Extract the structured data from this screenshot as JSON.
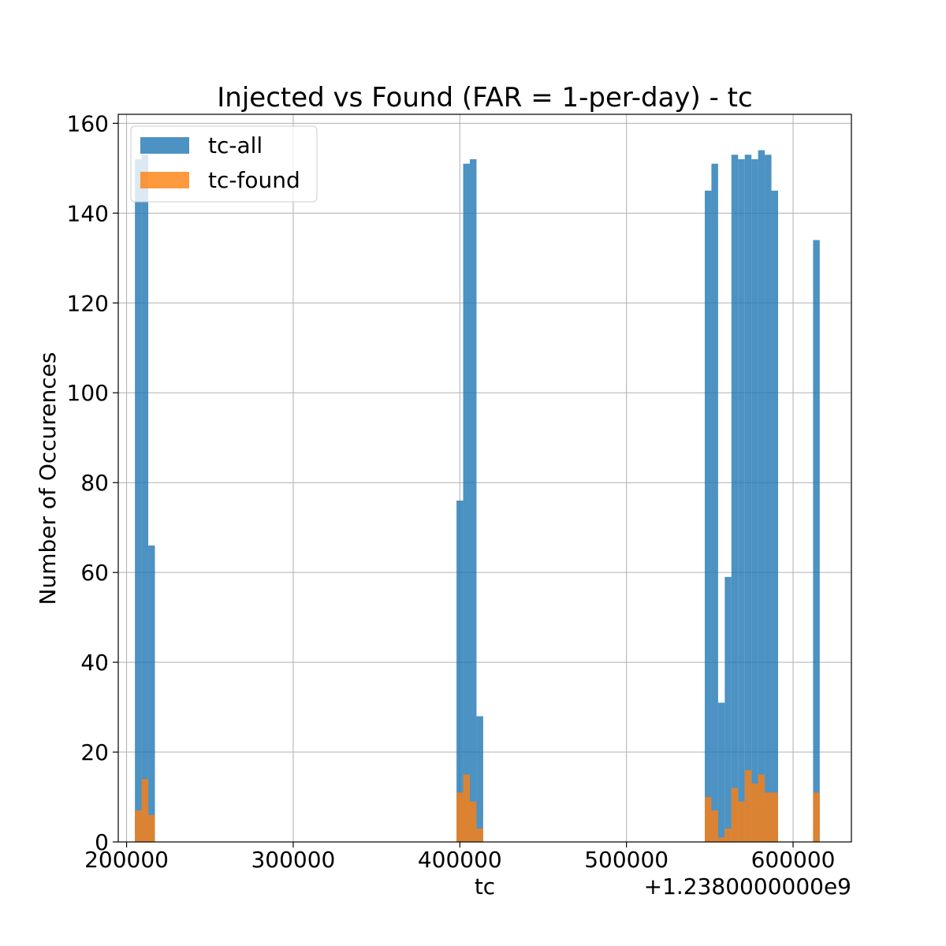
{
  "chart_data": {
    "type": "bar",
    "title": "Injected vs Found (FAR = 1-per-day) - tc",
    "xlabel": "tc",
    "ylabel": "Number of Occurences",
    "x_offset_label": "+1.2380000000e9",
    "xlim": [
      195000,
      635000
    ],
    "ylim": [
      0,
      162
    ],
    "xticks": [
      200000,
      300000,
      400000,
      500000,
      600000
    ],
    "yticks": [
      0,
      20,
      40,
      60,
      80,
      100,
      120,
      140,
      160
    ],
    "grid": true,
    "legend_position": "top-left",
    "series": [
      {
        "name": "tc-all",
        "color": "#1f77b4",
        "bins": [
          {
            "x0": 205000,
            "x1": 209000,
            "value": 152
          },
          {
            "x0": 209000,
            "x1": 213000,
            "value": 153
          },
          {
            "x0": 213000,
            "x1": 217000,
            "value": 66
          },
          {
            "x0": 398000,
            "x1": 402000,
            "value": 76
          },
          {
            "x0": 402000,
            "x1": 406000,
            "value": 151
          },
          {
            "x0": 406000,
            "x1": 410000,
            "value": 152
          },
          {
            "x0": 410000,
            "x1": 414000,
            "value": 28
          },
          {
            "x0": 547000,
            "x1": 551000,
            "value": 145
          },
          {
            "x0": 551000,
            "x1": 555000,
            "value": 151
          },
          {
            "x0": 555000,
            "x1": 559000,
            "value": 31
          },
          {
            "x0": 559000,
            "x1": 563000,
            "value": 59
          },
          {
            "x0": 563000,
            "x1": 567000,
            "value": 153
          },
          {
            "x0": 567000,
            "x1": 571000,
            "value": 152
          },
          {
            "x0": 571000,
            "x1": 575000,
            "value": 153
          },
          {
            "x0": 575000,
            "x1": 579000,
            "value": 152
          },
          {
            "x0": 579000,
            "x1": 583000,
            "value": 154
          },
          {
            "x0": 583000,
            "x1": 587000,
            "value": 153
          },
          {
            "x0": 587000,
            "x1": 591000,
            "value": 145
          },
          {
            "x0": 612000,
            "x1": 616000,
            "value": 134
          }
        ]
      },
      {
        "name": "tc-found",
        "color": "#ff7f0e",
        "bins": [
          {
            "x0": 205000,
            "x1": 209000,
            "value": 7
          },
          {
            "x0": 209000,
            "x1": 213000,
            "value": 14
          },
          {
            "x0": 213000,
            "x1": 217000,
            "value": 6
          },
          {
            "x0": 398000,
            "x1": 402000,
            "value": 11
          },
          {
            "x0": 402000,
            "x1": 406000,
            "value": 15
          },
          {
            "x0": 406000,
            "x1": 410000,
            "value": 9
          },
          {
            "x0": 410000,
            "x1": 414000,
            "value": 3
          },
          {
            "x0": 547000,
            "x1": 551000,
            "value": 10
          },
          {
            "x0": 551000,
            "x1": 555000,
            "value": 7
          },
          {
            "x0": 555000,
            "x1": 559000,
            "value": 1
          },
          {
            "x0": 559000,
            "x1": 563000,
            "value": 3
          },
          {
            "x0": 563000,
            "x1": 567000,
            "value": 12
          },
          {
            "x0": 567000,
            "x1": 571000,
            "value": 9
          },
          {
            "x0": 571000,
            "x1": 575000,
            "value": 16
          },
          {
            "x0": 575000,
            "x1": 579000,
            "value": 13
          },
          {
            "x0": 579000,
            "x1": 583000,
            "value": 15
          },
          {
            "x0": 583000,
            "x1": 587000,
            "value": 11
          },
          {
            "x0": 587000,
            "x1": 591000,
            "value": 11
          },
          {
            "x0": 612000,
            "x1": 616000,
            "value": 11
          }
        ]
      }
    ]
  }
}
